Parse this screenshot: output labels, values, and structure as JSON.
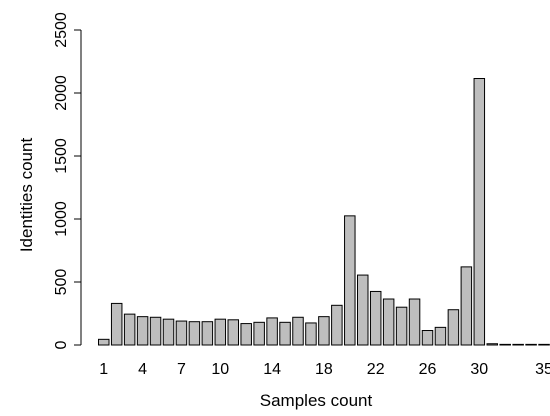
{
  "chart_data": {
    "type": "bar",
    "title": "",
    "xlabel": "Samples count",
    "ylabel": "Identities count",
    "categories": [
      1,
      2,
      3,
      4,
      5,
      6,
      7,
      8,
      9,
      10,
      11,
      12,
      13,
      14,
      15,
      16,
      17,
      18,
      19,
      20,
      21,
      22,
      23,
      24,
      25,
      26,
      27,
      28,
      29,
      30,
      31,
      32,
      33,
      34,
      35
    ],
    "values": [
      45,
      330,
      245,
      225,
      220,
      205,
      190,
      185,
      185,
      205,
      200,
      170,
      180,
      215,
      180,
      220,
      175,
      225,
      315,
      1025,
      555,
      425,
      365,
      300,
      365,
      115,
      140,
      280,
      620,
      2115,
      10,
      5,
      5,
      5,
      5
    ],
    "x_tick_labels": [
      "1",
      "4",
      "7",
      "10",
      "14",
      "18",
      "22",
      "26",
      "30",
      "35"
    ],
    "x_tick_positions": [
      1,
      4,
      7,
      10,
      14,
      18,
      22,
      26,
      30,
      35
    ],
    "y_ticks": [
      0,
      500,
      1000,
      1500,
      2000,
      2500
    ],
    "y_tick_labels": [
      "0",
      "500",
      "1000",
      "1500",
      "2000",
      "2500"
    ],
    "ylim": [
      0,
      2500
    ],
    "grid": false,
    "bar_color": "#bebebe",
    "bar_outline": "#000000"
  }
}
